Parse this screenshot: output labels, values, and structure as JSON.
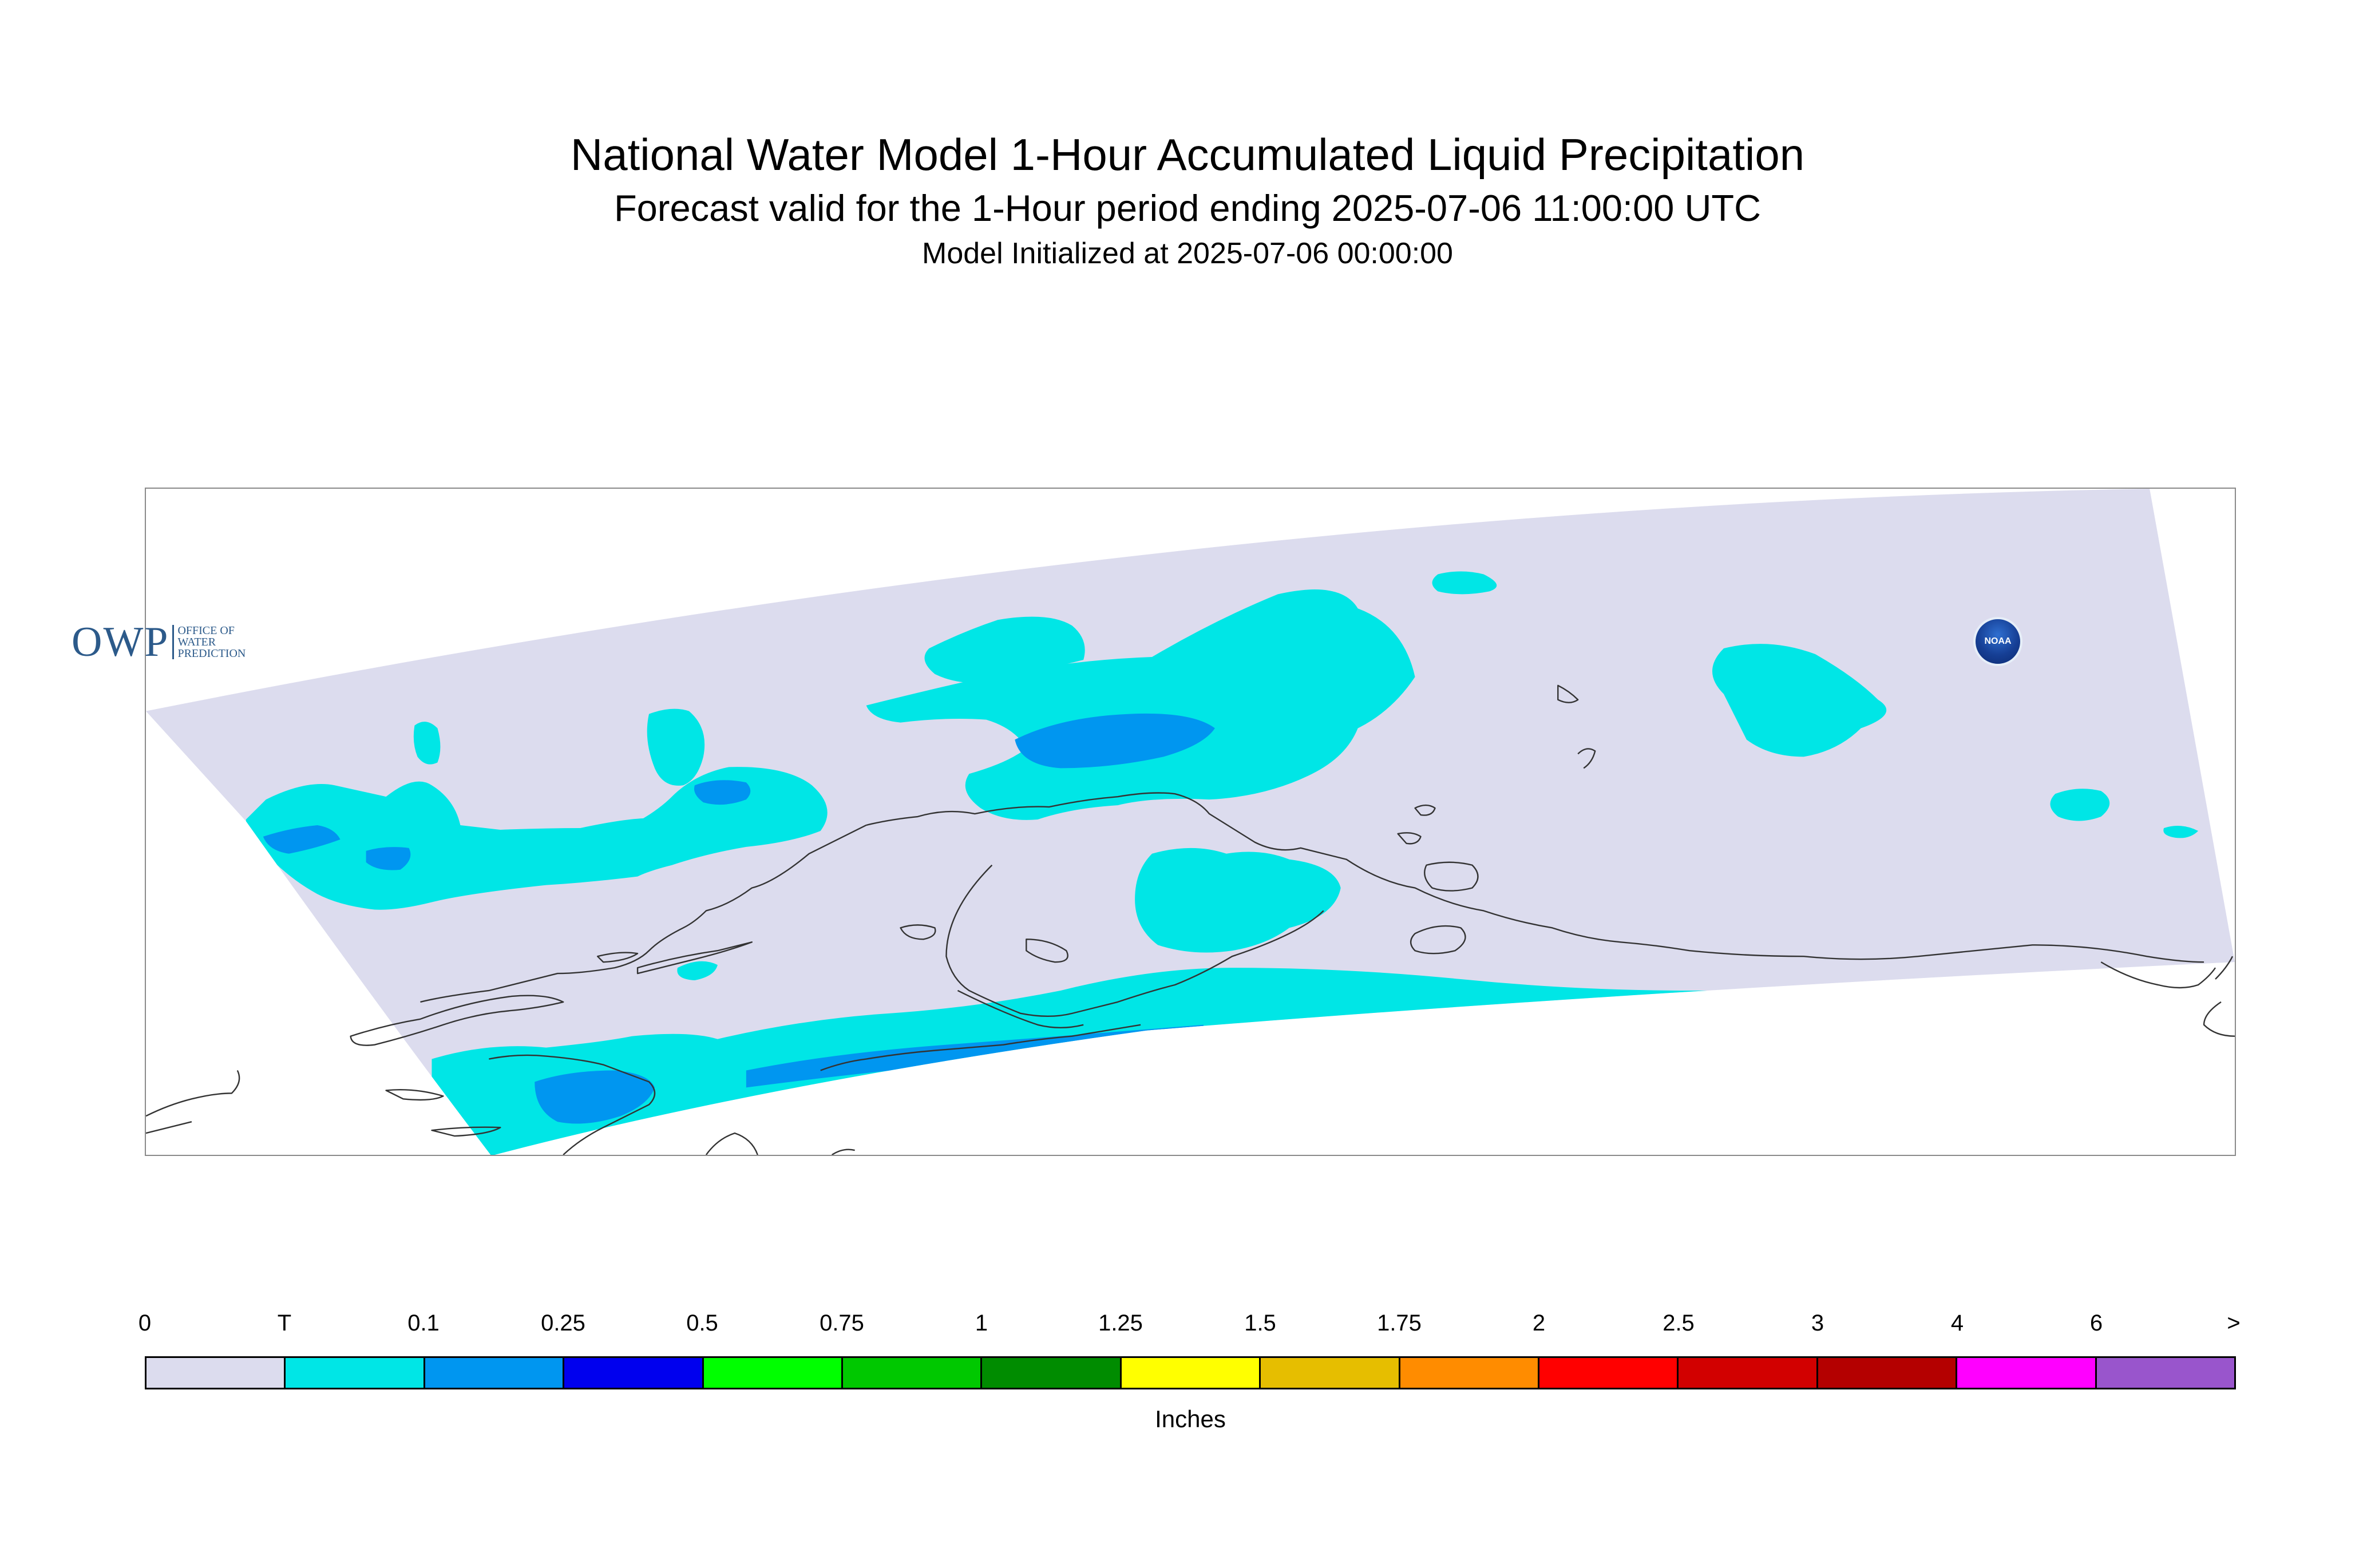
{
  "header": {
    "title": "National Water Model 1-Hour Accumulated Liquid Precipitation",
    "subtitle": "Forecast valid for the 1-Hour period ending 2025-07-06 11:00:00 UTC",
    "init_line": "Model Initialized at 2025-07-06 00:00:00"
  },
  "logos": {
    "owp_mark": "OWP",
    "owp_text": "Office of Water Prediction",
    "noaa_text": "NOAA"
  },
  "legend": {
    "units": "Inches",
    "tick_labels": [
      "0",
      "T",
      "0.1",
      "0.25",
      "0.5",
      "0.75",
      "1",
      "1.25",
      "1.5",
      "1.75",
      "2",
      "2.5",
      "3",
      "4",
      "6",
      ">"
    ],
    "colors": [
      "#dcdcee",
      "#00e6e6",
      "#0096f0",
      "#0000ee",
      "#00ff00",
      "#00c800",
      "#008c00",
      "#ffff00",
      "#e6be00",
      "#ff8c00",
      "#ff0000",
      "#d20000",
      "#b40000",
      "#ff00ff",
      "#9955cc"
    ]
  },
  "map": {
    "domain_color": "#dcdcee",
    "trace_color": "#00e6e6",
    "light_color": "#0096f0",
    "moderate_color": "#0000ee",
    "coast_color": "#333333"
  }
}
